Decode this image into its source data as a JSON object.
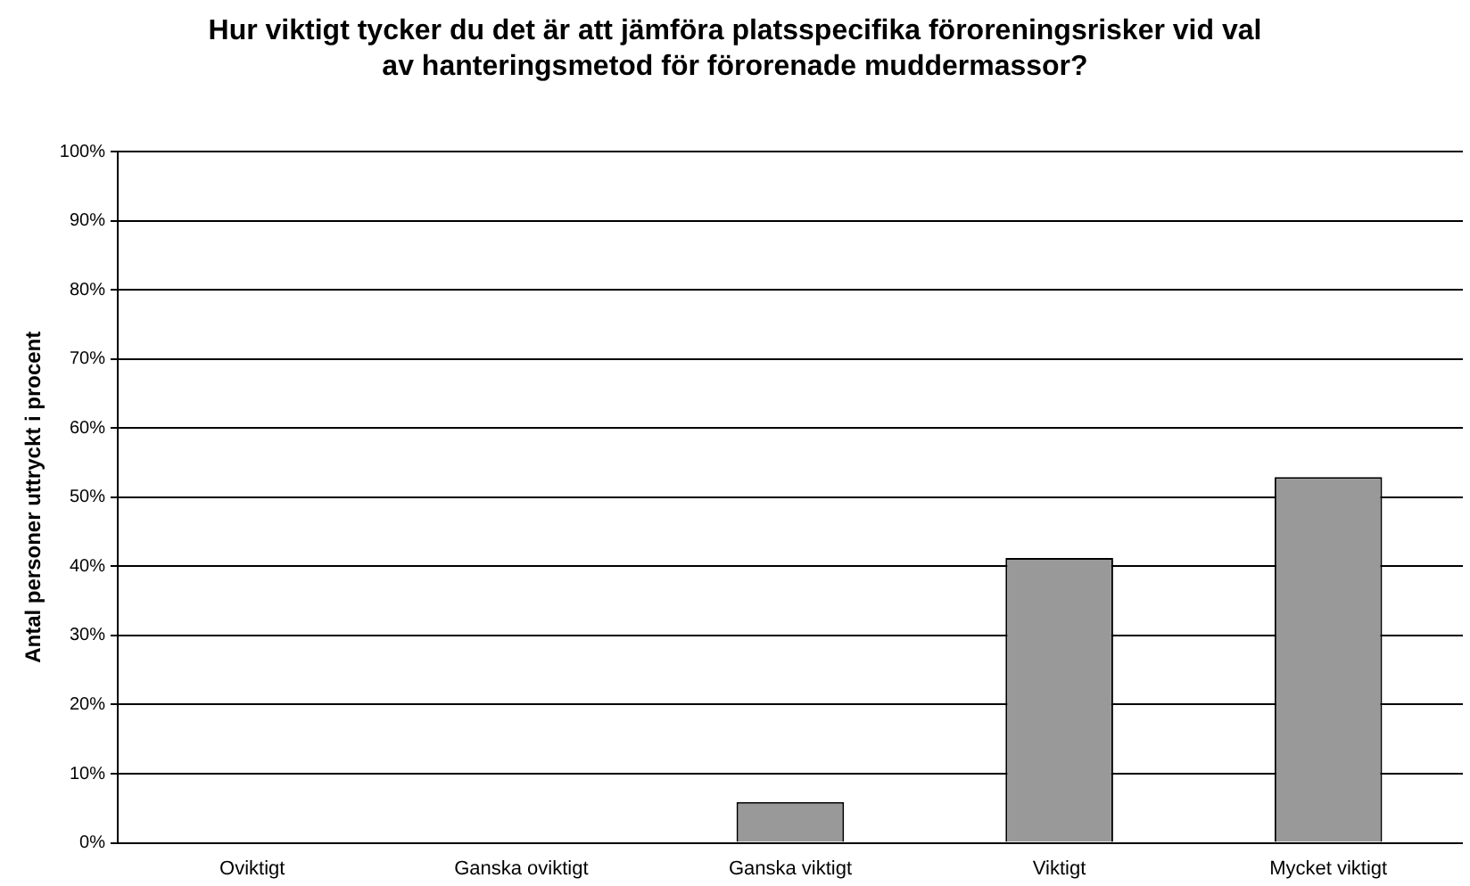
{
  "chart_data": {
    "type": "bar",
    "title": "Hur viktigt tycker du det är att jämföra platsspecifika föroreningsrisker vid val av hanteringsmetod för förorenade muddermassor?",
    "ylabel": "Antal personer uttryckt i procent",
    "categories": [
      "Oviktigt",
      "Ganska oviktigt",
      "Ganska viktigt",
      "Viktigt",
      "Mycket viktigt"
    ],
    "values": [
      0,
      0,
      5.9,
      41.2,
      52.9
    ],
    "color": "#999999",
    "ylim": [
      0,
      100
    ],
    "yticks": [
      {
        "value": 0,
        "label": "0%"
      },
      {
        "value": 10,
        "label": "10%"
      },
      {
        "value": 20,
        "label": "20%"
      },
      {
        "value": 30,
        "label": "30%"
      },
      {
        "value": 40,
        "label": "40%"
      },
      {
        "value": 50,
        "label": "50%"
      },
      {
        "value": 60,
        "label": "60%"
      },
      {
        "value": 70,
        "label": "70%"
      },
      {
        "value": 80,
        "label": "80%"
      },
      {
        "value": 90,
        "label": "90%"
      },
      {
        "value": 100,
        "label": "100%"
      }
    ],
    "grid": "y",
    "legend": false
  }
}
